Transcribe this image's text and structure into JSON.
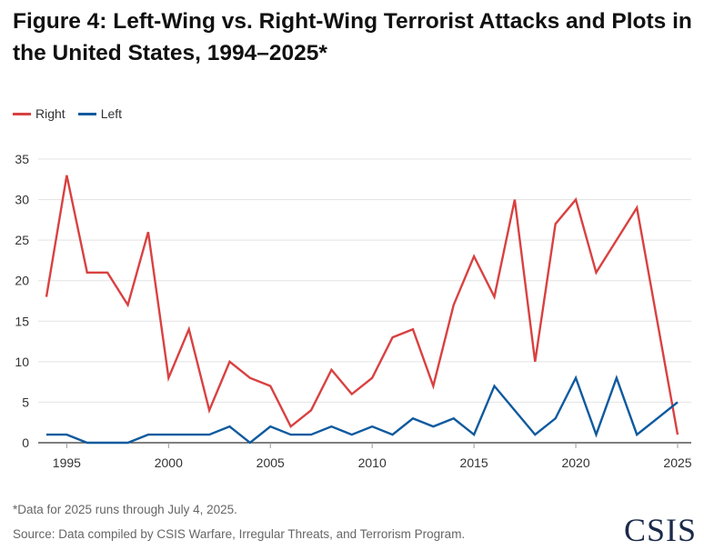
{
  "chart_data": {
    "type": "line",
    "title": "Figure 4: Left-Wing vs. Right-Wing Terrorist Attacks and Plots in the United States, 1994–2025*",
    "xlabel": "",
    "ylabel": "",
    "x": [
      1994,
      1995,
      1996,
      1997,
      1998,
      1999,
      2000,
      2001,
      2002,
      2003,
      2004,
      2005,
      2006,
      2007,
      2008,
      2009,
      2010,
      2011,
      2012,
      2013,
      2014,
      2015,
      2016,
      2017,
      2018,
      2019,
      2020,
      2021,
      2022,
      2023,
      2024,
      2025
    ],
    "xticks": [
      1995,
      2000,
      2005,
      2010,
      2015,
      2020,
      2025
    ],
    "yticks": [
      0,
      5,
      10,
      15,
      20,
      25,
      30,
      35
    ],
    "xlim": [
      1994,
      2025
    ],
    "ylim": [
      0,
      35
    ],
    "grid": true,
    "legend_position": "top-left",
    "series": [
      {
        "name": "Right",
        "color": "#d94141",
        "values": [
          18,
          33,
          21,
          21,
          17,
          26,
          8,
          14,
          4,
          10,
          8,
          7,
          2,
          4,
          9,
          6,
          8,
          13,
          14,
          7,
          17,
          23,
          18,
          30,
          10,
          27,
          30,
          21,
          25,
          29,
          15,
          1
        ]
      },
      {
        "name": "Left",
        "color": "#0f5a9e",
        "values": [
          1,
          1,
          0,
          0,
          0,
          1,
          1,
          1,
          1,
          2,
          0,
          2,
          1,
          1,
          2,
          1,
          2,
          1,
          3,
          2,
          3,
          1,
          7,
          4,
          1,
          3,
          8,
          1,
          8,
          1,
          3,
          5
        ]
      }
    ]
  },
  "notes": {
    "footnote": "*Data for 2025 runs through July 4, 2025.",
    "source": "Source: Data compiled by CSIS Warfare, Irregular Threats, and Terrorism Program.",
    "logo": "CSIS"
  }
}
